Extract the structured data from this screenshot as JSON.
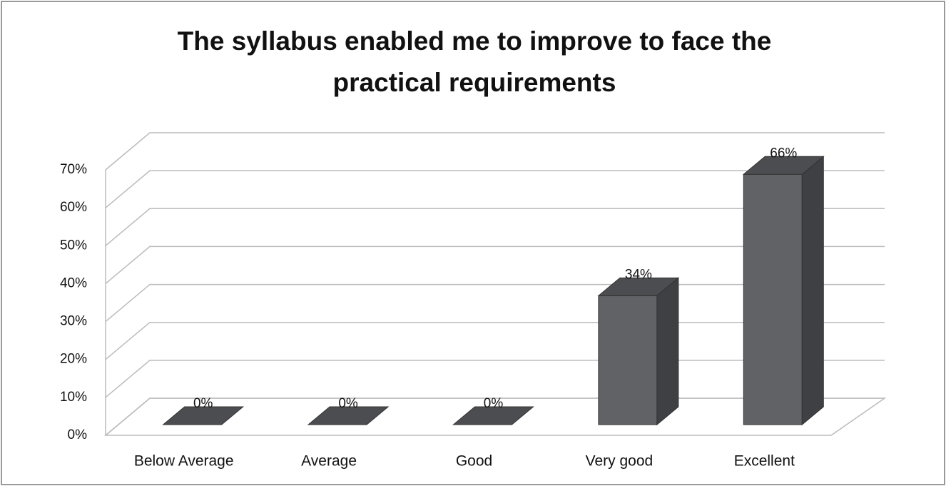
{
  "chart_data": {
    "type": "bar3d",
    "title": [
      "The syllabus enabled me to improve  to face the",
      "practical requirements"
    ],
    "categories": [
      "Below Average",
      "Average",
      "Good",
      "Very good",
      "Excellent"
    ],
    "values": [
      0,
      0,
      0,
      34,
      66
    ],
    "value_labels": [
      "0%",
      "0%",
      "0%",
      "34%",
      "66%"
    ],
    "color": "#606266",
    "ylim": [
      0,
      70
    ],
    "yticks": [
      {
        "value": 0,
        "label": "0%"
      },
      {
        "value": 10,
        "label": "10%"
      },
      {
        "value": 20,
        "label": "20%"
      },
      {
        "value": 30,
        "label": "30%"
      },
      {
        "value": 40,
        "label": "40%"
      },
      {
        "value": 50,
        "label": "50%"
      },
      {
        "value": 60,
        "label": "60%"
      },
      {
        "value": 70,
        "label": "70%"
      }
    ],
    "grid": true
  }
}
